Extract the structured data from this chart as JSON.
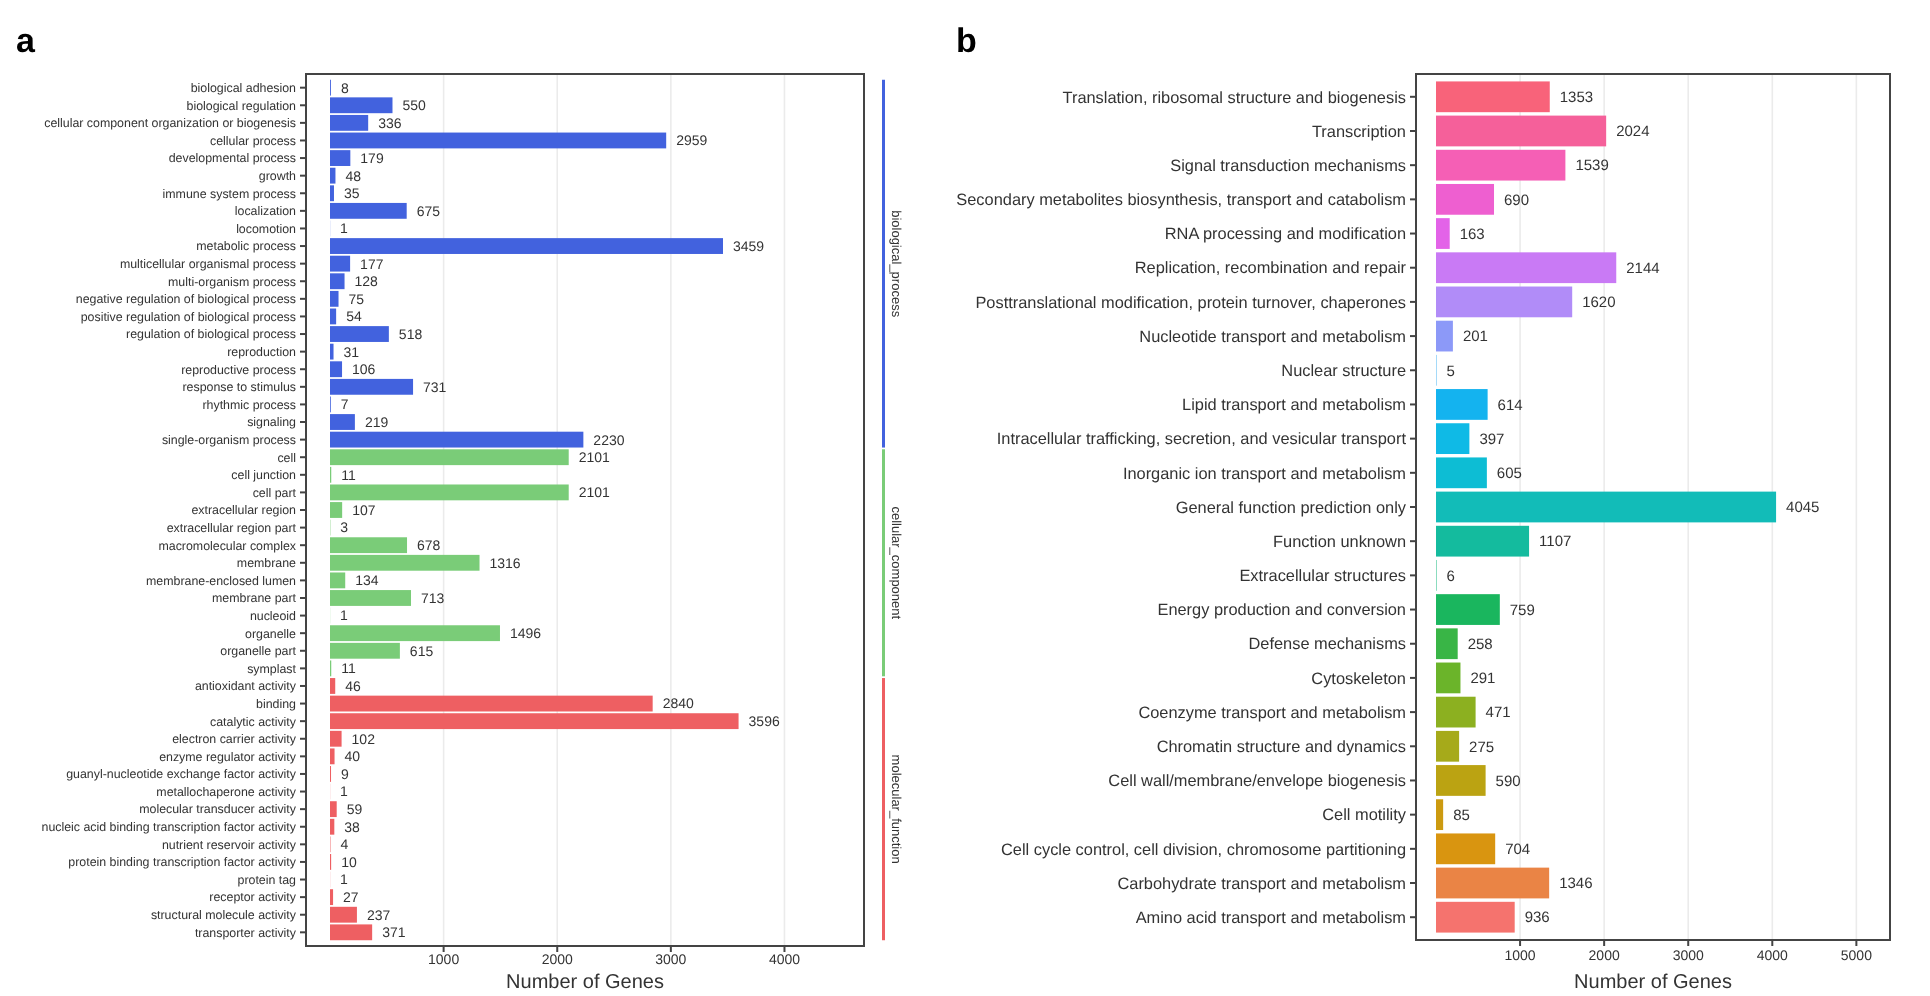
{
  "chart_data": [
    {
      "type": "bar",
      "title": "a",
      "orientation": "horizontal",
      "xlabel": "Number of Genes",
      "xlim": [
        0,
        4700
      ],
      "xticks": [
        1000,
        2000,
        3000,
        4000
      ],
      "grid": "x",
      "data_labels": true,
      "legend": "right",
      "categories": [
        "biological adhesion",
        "biological regulation",
        "cellular component organization or biogenesis",
        "cellular process",
        "developmental process",
        "growth",
        "immune system process",
        "localization",
        "locomotion",
        "metabolic process",
        "multicellular organismal process",
        "multi-organism process",
        "negative regulation of biological process",
        "positive regulation of biological process",
        "regulation of biological process",
        "reproduction",
        "reproductive process",
        "response to stimulus",
        "rhythmic process",
        "signaling",
        "single-organism process",
        "cell",
        "cell junction",
        "cell part",
        "extracellular region",
        "extracellular region part",
        "macromolecular complex",
        "membrane",
        "membrane-enclosed lumen",
        "membrane part",
        "nucleoid",
        "organelle",
        "organelle part",
        "symplast",
        "antioxidant activity",
        "binding",
        "catalytic activity",
        "electron carrier activity",
        "enzyme regulator activity",
        "guanyl-nucleotide exchange factor activity",
        "metallochaperone activity",
        "molecular transducer activity",
        "nucleic acid binding transcription factor activity",
        "nutrient reservoir activity",
        "protein binding transcription factor activity",
        "protein tag",
        "receptor activity",
        "structural molecule activity",
        "transporter activity"
      ],
      "series": [
        {
          "name": "biological_process",
          "color": "#4262de",
          "values": [
            8,
            550,
            336,
            2959,
            179,
            48,
            35,
            675,
            1,
            3459,
            177,
            128,
            75,
            54,
            518,
            31,
            106,
            731,
            7,
            219,
            2230,
            null,
            null,
            null,
            null,
            null,
            null,
            null,
            null,
            null,
            null,
            null,
            null,
            null,
            null,
            null,
            null,
            null,
            null,
            null,
            null,
            null,
            null,
            null,
            null,
            null,
            null,
            null,
            null
          ]
        },
        {
          "name": "cellular_component",
          "color": "#7acc78",
          "values": [
            null,
            null,
            null,
            null,
            null,
            null,
            null,
            null,
            null,
            null,
            null,
            null,
            null,
            null,
            null,
            null,
            null,
            null,
            null,
            null,
            null,
            2101,
            11,
            2101,
            107,
            3,
            678,
            1316,
            134,
            713,
            1,
            1496,
            615,
            11,
            null,
            null,
            null,
            null,
            null,
            null,
            null,
            null,
            null,
            null,
            null,
            null,
            null,
            null,
            null
          ]
        },
        {
          "name": "molecular_function",
          "color": "#ee5f62",
          "values": [
            null,
            null,
            null,
            null,
            null,
            null,
            null,
            null,
            null,
            null,
            null,
            null,
            null,
            null,
            null,
            null,
            null,
            null,
            null,
            null,
            null,
            null,
            null,
            null,
            null,
            null,
            null,
            null,
            null,
            null,
            null,
            null,
            null,
            null,
            46,
            2840,
            3596,
            102,
            40,
            9,
            1,
            59,
            38,
            4,
            10,
            1,
            27,
            237,
            371
          ]
        }
      ]
    },
    {
      "type": "bar",
      "title": "b",
      "orientation": "horizontal",
      "xlabel": "Number of Genes",
      "xlim": [
        0,
        5400
      ],
      "xticks": [
        1000,
        2000,
        3000,
        4000,
        5000
      ],
      "grid": "x",
      "data_labels": true,
      "categories": [
        "Translation, ribosomal structure and biogenesis",
        "Transcription",
        "Signal transduction mechanisms",
        "Secondary metabolites biosynthesis, transport and catabolism",
        "RNA processing and modification",
        "Replication, recombination and repair",
        "Posttranslational modification, protein turnover, chaperones",
        "Nucleotide transport and metabolism",
        "Nuclear structure",
        "Lipid transport and metabolism",
        "Intracellular trafficking, secretion, and vesicular transport",
        "Inorganic ion transport and metabolism",
        "General function prediction only",
        "Function unknown",
        "Extracellular structures",
        "Energy production and conversion",
        "Defense mechanisms",
        "Cytoskeleton",
        "Coenzyme transport and metabolism",
        "Chromatin structure and dynamics",
        "Cell wall/membrane/envelope biogenesis",
        "Cell motility",
        "Cell cycle control, cell division, chromosome partitioning",
        "Carbohydrate transport and metabolism",
        "Amino acid transport and metabolism"
      ],
      "values": [
        1353,
        2024,
        1539,
        690,
        163,
        2144,
        1620,
        201,
        5,
        614,
        397,
        605,
        4045,
        1107,
        6,
        759,
        258,
        291,
        471,
        275,
        590,
        85,
        704,
        1346,
        936
      ],
      "colors": [
        "#f8637a",
        "#f5609a",
        "#f55fb5",
        "#ee5fd0",
        "#e363e8",
        "#c97af5",
        "#b18cf8",
        "#8c99f8",
        "#2aa8f0",
        "#14b3ef",
        "#0fbae6",
        "#0dbdd4",
        "#12bcb8",
        "#14bb9e",
        "#19ba80",
        "#1ab65e",
        "#39b546",
        "#6bb42a",
        "#8cb020",
        "#a6aa1a",
        "#bba312",
        "#cc9a10",
        "#d99510",
        "#ea8445",
        "#f5736e"
      ]
    }
  ]
}
